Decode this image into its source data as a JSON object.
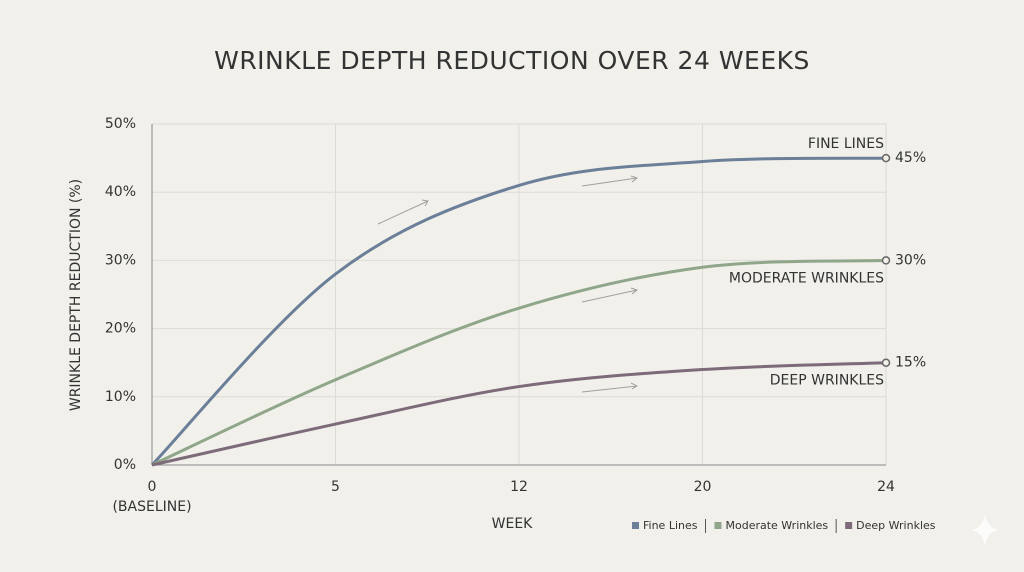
{
  "chart_data": {
    "type": "line",
    "title": "WRINKLE DEPTH REDUCTION OVER 24 WEEKS",
    "x_label": "WEEK",
    "y_label": "WRINKLE DEPTH REDUCTION (%)",
    "categories": [
      "0\n(BASELINE)",
      "5",
      "12",
      "20",
      "24"
    ],
    "series": [
      {
        "name": "Fine Lines",
        "label": "FINE LINES",
        "color": "#6b7f99",
        "values": [
          0,
          28,
          41,
          44.5,
          45
        ],
        "value_labels": [
          null,
          null,
          null,
          null,
          "45%"
        ]
      },
      {
        "name": "Moderate Wrinkles",
        "label": "MODERATE WRINKLES",
        "color": "#8fa68a",
        "values": [
          0,
          12.5,
          23,
          29,
          30
        ],
        "value_labels": [
          null,
          null,
          null,
          null,
          "30%"
        ]
      },
      {
        "name": "Deep Wrinkles",
        "label": "DEEP WRINKLES",
        "color": "#7d6b7a",
        "values": [
          0,
          6,
          11.5,
          14,
          15
        ],
        "value_labels": [
          null,
          null,
          null,
          null,
          "15%"
        ]
      }
    ],
    "ylim": [
      0,
      50
    ],
    "yticks": [
      {
        "value": 0,
        "label": "0%"
      },
      {
        "value": 10,
        "label": "10%"
      },
      {
        "value": 20,
        "label": "20%"
      },
      {
        "value": 30,
        "label": "30%"
      },
      {
        "value": 40,
        "label": "40%"
      },
      {
        "value": 50,
        "label": "50%"
      }
    ],
    "grid": true
  }
}
